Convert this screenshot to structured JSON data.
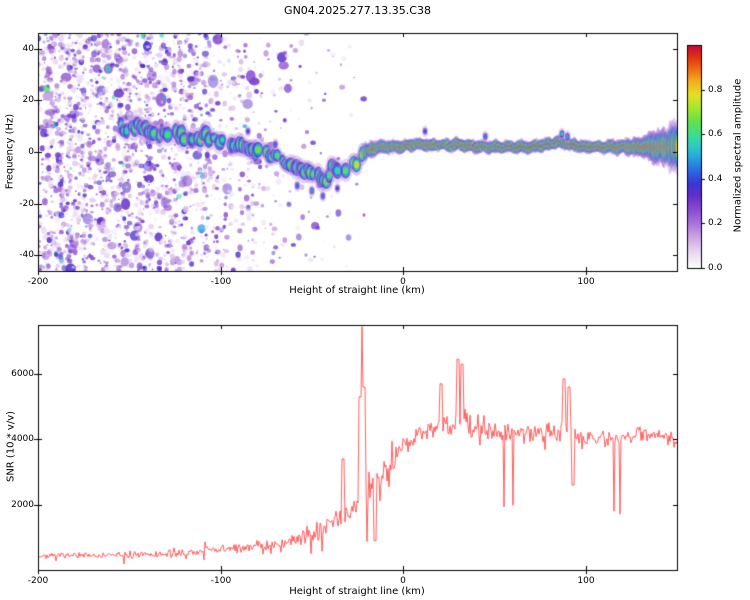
{
  "title": "GN04.2025.277.13.35.C38",
  "colors": {
    "background": "#ffffff",
    "axis": "#000000",
    "snr_line": "#ff3b3b"
  },
  "colormap": {
    "stops": [
      [
        0.0,
        "#ffffff"
      ],
      [
        0.03,
        "#f6eef9"
      ],
      [
        0.08,
        "#e7d3f0"
      ],
      [
        0.14,
        "#cba6e4"
      ],
      [
        0.2,
        "#aa74d8"
      ],
      [
        0.27,
        "#8747cf"
      ],
      [
        0.33,
        "#5f2ec8"
      ],
      [
        0.38,
        "#3c35d4"
      ],
      [
        0.44,
        "#2b6ae2"
      ],
      [
        0.5,
        "#27a6e0"
      ],
      [
        0.55,
        "#2ecbc4"
      ],
      [
        0.6,
        "#3edd8e"
      ],
      [
        0.66,
        "#63e148"
      ],
      [
        0.72,
        "#a8e52e"
      ],
      [
        0.78,
        "#e3df24"
      ],
      [
        0.84,
        "#f3ae1e"
      ],
      [
        0.9,
        "#ee6312"
      ],
      [
        0.95,
        "#e03010"
      ],
      [
        1.0,
        "#c4093c"
      ]
    ]
  },
  "chart_data": [
    {
      "type": "heatmap",
      "title": "GN04.2025.277.13.35.C38",
      "xlabel": "Height of straight line (km)",
      "ylabel": "Frequency (Hz)",
      "colorbar_label": "Normalized spectral amplitude",
      "xlim": [
        -200,
        150
      ],
      "ylim": [
        -46,
        46
      ],
      "x_ticks": [
        -200,
        -100,
        0,
        100
      ],
      "y_ticks": [
        -40,
        -20,
        0,
        20,
        40
      ],
      "colorbar_ticks": [
        0.0,
        0.2,
        0.4,
        0.6,
        0.8
      ],
      "colorbar_range": [
        0.0,
        1.0
      ],
      "signal_trace": {
        "heights": [
          -156,
          -150,
          -144,
          -138,
          -132,
          -126,
          -120,
          -114,
          -108,
          -102,
          -96,
          -90,
          -84,
          -78,
          -72,
          -66,
          -60,
          -56,
          -52,
          -48,
          -45,
          -42,
          -40,
          -38,
          -36,
          -34,
          -32,
          -30,
          -28,
          -26,
          -24,
          -22,
          -20,
          -17,
          -14,
          -10,
          -5,
          0,
          5,
          10,
          15,
          20,
          25,
          30,
          40,
          50,
          60,
          70,
          80,
          85,
          90,
          95,
          100,
          110,
          120,
          130,
          140,
          150
        ],
        "freqs": [
          10,
          9,
          10,
          8,
          7,
          8,
          6,
          5,
          6,
          4,
          3,
          2,
          1,
          0,
          -1,
          -3,
          -5,
          -6,
          -8,
          -7,
          -10,
          -12,
          -8,
          -4,
          -7,
          -10,
          -6,
          -8,
          -3,
          -6,
          -2,
          -1,
          0,
          1,
          2,
          2,
          2,
          2,
          3,
          3,
          2.5,
          3,
          2.5,
          3,
          2,
          2,
          2,
          2,
          3,
          4,
          3,
          2.5,
          2,
          2,
          2,
          2,
          2,
          2
        ],
        "amp_heights": [
          -156,
          -30,
          -24,
          -20,
          -15,
          0,
          120,
          130,
          140,
          150
        ],
        "amps": [
          0.6,
          0.63,
          0.72,
          0.85,
          0.93,
          0.98,
          0.97,
          0.93,
          0.9,
          0.85
        ],
        "width_heights": [
          -156,
          -60,
          -40,
          -24,
          -20,
          -12,
          0,
          110,
          125,
          140,
          150
        ],
        "halfwidths_hz": [
          2.2,
          2.2,
          2.2,
          2.2,
          1.8,
          1.5,
          1.3,
          1.3,
          1.8,
          3.5,
          5.5
        ]
      },
      "noise_field": {
        "heights": [
          -200,
          -130,
          -110,
          -100,
          -80,
          -60,
          -40,
          -28,
          -20,
          -5
        ],
        "density": [
          1.0,
          0.92,
          0.65,
          0.45,
          0.25,
          0.12,
          0.06,
          0.03,
          0.012,
          0.0
        ],
        "amp_range": [
          0.04,
          0.38
        ]
      },
      "extra_blobs": [
        {
          "x": -58,
          "f": -13,
          "a": 0.45
        },
        {
          "x": -50,
          "f": -15,
          "a": 0.5
        },
        {
          "x": -44,
          "f": -17,
          "a": 0.45
        },
        {
          "x": -36,
          "f": -14,
          "a": 0.4
        },
        {
          "x": -70,
          "f": 3,
          "a": 0.45
        },
        {
          "x": -85,
          "f": 8,
          "a": 0.4
        },
        {
          "x": 87,
          "f": 7,
          "a": 0.55
        },
        {
          "x": 90,
          "f": 6,
          "a": 0.5
        },
        {
          "x": 45,
          "f": 6,
          "a": 0.45
        },
        {
          "x": 12,
          "f": 8,
          "a": 0.4
        }
      ]
    },
    {
      "type": "line",
      "xlabel": "Height of straight line (km)",
      "ylabel": "SNR (10 * v/v)",
      "xlim": [
        -200,
        150
      ],
      "ylim": [
        0,
        7500
      ],
      "x_ticks": [
        -200,
        -100,
        0,
        100
      ],
      "y_ticks": [
        2000,
        4000,
        6000
      ],
      "series": [
        {
          "name": "SNR",
          "color": "#ff3b3b",
          "heights": [
            -200,
            -180,
            -160,
            -150,
            -140,
            -130,
            -120,
            -110,
            -100,
            -90,
            -80,
            -70,
            -60,
            -50,
            -45,
            -40,
            -35,
            -30,
            -26,
            -23,
            -21,
            -19,
            -16,
            -13,
            -10,
            -6,
            -2,
            0,
            5,
            10,
            15,
            20,
            25,
            30,
            35,
            40,
            50,
            60,
            70,
            80,
            85,
            90,
            95,
            100,
            110,
            120,
            130,
            140,
            150
          ],
          "mean": [
            430,
            440,
            450,
            460,
            470,
            490,
            520,
            560,
            620,
            680,
            730,
            800,
            950,
            1150,
            1250,
            1400,
            1600,
            1800,
            2100,
            2600,
            3300,
            2500,
            2300,
            2600,
            3000,
            3400,
            3700,
            3800,
            4000,
            4200,
            4300,
            4300,
            4400,
            4500,
            4400,
            4400,
            4300,
            4200,
            4250,
            4200,
            4300,
            4250,
            3900,
            4050,
            4000,
            4050,
            4150,
            4150,
            3950
          ],
          "noise": [
            130,
            130,
            140,
            150,
            160,
            170,
            190,
            220,
            240,
            280,
            320,
            380,
            450,
            520,
            560,
            620,
            700,
            750,
            850,
            1100,
            1700,
            1100,
            950,
            900,
            800,
            700,
            600,
            550,
            500,
            520,
            560,
            600,
            620,
            700,
            650,
            600,
            520,
            480,
            480,
            520,
            600,
            650,
            520,
            420,
            350,
            340,
            330,
            320,
            300
          ],
          "spikes": [
            [
              -22.3,
              7450
            ],
            [
              -23.5,
              5300
            ],
            [
              -21.2,
              5600
            ],
            [
              -33,
              3400
            ],
            [
              21,
              5700
            ],
            [
              30,
              6450
            ],
            [
              32.5,
              6300
            ],
            [
              88,
              5850
            ],
            [
              91,
              5600
            ],
            [
              93,
              2600
            ],
            [
              -15.5,
              900
            ]
          ]
        }
      ]
    }
  ]
}
